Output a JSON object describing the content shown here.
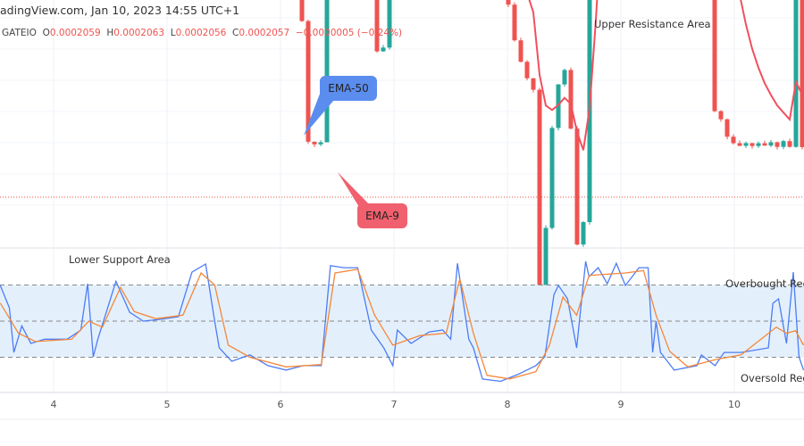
{
  "header": {
    "title": "adingView.com, Jan 10, 2023 14:55 UTC+1",
    "symbol": "GATEIO",
    "open_label": "O",
    "open": "0.0002059",
    "high_label": "H",
    "high": "0.0002063",
    "low_label": "L",
    "low": "0.0002056",
    "close_label": "C",
    "close": "0.0002057",
    "change": "−0.0000005 (−0.24%)"
  },
  "annotations": {
    "upper": "Upper Resistance Area",
    "lower": "Lower Support Area",
    "overbought": "Overbought Reg",
    "oversold": "Oversold Reg",
    "ema50": "EMA-50",
    "ema9": "EMA-9"
  },
  "colors": {
    "up": "#26a69a",
    "down": "#ef5350",
    "ema9": "#f0505f",
    "ema50": "#3d6ef5",
    "levels": "#5e35b1",
    "stoch_k": "#4d7cf5",
    "stoch_d": "#f5873a",
    "band": "#e3f0fc"
  },
  "chart_data": [
    {
      "type": "candlestick",
      "title": "",
      "x_ticks": [
        "4",
        "5",
        "6",
        "7",
        "8",
        "9",
        "10"
      ],
      "x_tick_values": [
        4,
        5,
        6,
        7,
        8,
        9,
        10
      ],
      "x_range": [
        3.53,
        10.61
      ],
      "last_close": 0.0002057,
      "levels": {
        "upper_resistance": 0.0002245,
        "lower_support": 0.0002016
      },
      "close_track": [
        [
          3.53,
          0.0002208
        ],
        [
          3.61,
          0.0002183
        ],
        [
          3.69,
          0.0002128
        ],
        [
          3.76,
          0.0002133
        ],
        [
          3.92,
          0.0002138
        ],
        [
          4.16,
          0.0002138
        ],
        [
          4.31,
          0.0002118
        ],
        [
          4.39,
          0.0002113
        ],
        [
          4.51,
          0.0002158
        ],
        [
          4.63,
          0.0002138
        ],
        [
          4.79,
          0.0002138
        ],
        [
          5.1,
          0.000214
        ],
        [
          5.34,
          0.000215
        ],
        [
          5.46,
          0.0002153
        ],
        [
          5.54,
          0.0002108
        ],
        [
          5.65,
          0.0002103
        ],
        [
          5.89,
          0.0002098
        ],
        [
          6.13,
          0.0002093
        ],
        [
          6.24,
          0.0002063
        ],
        [
          6.36,
          0.0002063
        ],
        [
          6.44,
          0.0002098
        ],
        [
          6.68,
          0.0002098
        ],
        [
          6.76,
          0.0002088
        ],
        [
          6.87,
          0.000207
        ],
        [
          6.99,
          0.0002083
        ],
        [
          7.07,
          0.0002098
        ],
        [
          7.31,
          0.0002098
        ],
        [
          7.46,
          0.0002093
        ],
        [
          7.54,
          0.0002143
        ],
        [
          7.62,
          0.0002088
        ],
        [
          7.78,
          0.0002088
        ],
        [
          7.94,
          0.0002083
        ],
        [
          8.09,
          0.0002073
        ],
        [
          8.25,
          0.0002068
        ],
        [
          8.29,
          0.0002038
        ],
        [
          8.37,
          0.0002063
        ],
        [
          8.49,
          0.0002073
        ],
        [
          8.57,
          0.0002063
        ],
        [
          8.65,
          0.0002043
        ],
        [
          8.72,
          0.0002083
        ],
        [
          8.8,
          0.0002128
        ],
        [
          8.96,
          0.0002158
        ],
        [
          9.04,
          0.0002198
        ],
        [
          9.16,
          0.0002188
        ],
        [
          9.2,
          0.0002203
        ],
        [
          9.28,
          0.0002168
        ],
        [
          9.35,
          0.0002118
        ],
        [
          9.51,
          0.0002108
        ],
        [
          9.67,
          0.0002108
        ],
        [
          9.75,
          0.0002103
        ],
        [
          9.79,
          0.0002068
        ],
        [
          9.98,
          0.0002063
        ],
        [
          10.22,
          0.0002063
        ],
        [
          10.5,
          0.0002063
        ],
        [
          10.54,
          0.0002088
        ],
        [
          10.61,
          0.0002058
        ]
      ],
      "series": [
        {
          "name": "EMA-9",
          "period": 9
        },
        {
          "name": "EMA-50",
          "period": 50
        }
      ]
    },
    {
      "type": "line",
      "title": "",
      "ylim": [
        0,
        100
      ],
      "levels": {
        "overbought": 80,
        "middle": 50,
        "oversold": 20
      },
      "series": [
        {
          "values": [
            [
              3.53,
              79.6
            ],
            [
              3.61,
              61
            ],
            [
              3.65,
              24
            ],
            [
              3.72,
              46
            ],
            [
              3.8,
              31.5
            ],
            [
              3.92,
              35
            ],
            [
              4.12,
              35
            ],
            [
              4.24,
              42.6
            ],
            [
              4.3,
              81
            ],
            [
              4.35,
              20.4
            ],
            [
              4.39,
              35
            ],
            [
              4.55,
              83
            ],
            [
              4.67,
              57.4
            ],
            [
              4.79,
              50
            ],
            [
              4.94,
              51.5
            ],
            [
              5.1,
              53.7
            ],
            [
              5.22,
              90.7
            ],
            [
              5.34,
              97.4
            ],
            [
              5.42,
              50
            ],
            [
              5.46,
              27.8
            ],
            [
              5.57,
              16.7
            ],
            [
              5.73,
              21.9
            ],
            [
              5.89,
              13
            ],
            [
              6.05,
              9.3
            ],
            [
              6.2,
              13
            ],
            [
              6.36,
              13
            ],
            [
              6.44,
              96
            ],
            [
              6.56,
              94.4
            ],
            [
              6.68,
              94.4
            ],
            [
              6.8,
              42.6
            ],
            [
              6.91,
              27.8
            ],
            [
              6.99,
              13
            ],
            [
              7.03,
              42.6
            ],
            [
              7.15,
              31.5
            ],
            [
              7.31,
              41
            ],
            [
              7.43,
              42.6
            ],
            [
              7.5,
              35
            ],
            [
              7.56,
              98
            ],
            [
              7.66,
              35
            ],
            [
              7.7,
              27.8
            ],
            [
              7.78,
              1.9
            ],
            [
              7.94,
              0
            ],
            [
              8.09,
              5.6
            ],
            [
              8.25,
              13
            ],
            [
              8.33,
              20.4
            ],
            [
              8.41,
              72
            ],
            [
              8.45,
              79.6
            ],
            [
              8.53,
              68.5
            ],
            [
              8.61,
              27.8
            ],
            [
              8.69,
              99.6
            ],
            [
              8.72,
              87
            ],
            [
              8.8,
              94.4
            ],
            [
              8.88,
              81
            ],
            [
              8.96,
              98
            ],
            [
              9.04,
              79.6
            ],
            [
              9.16,
              94.4
            ],
            [
              9.24,
              94.4
            ],
            [
              9.28,
              24
            ],
            [
              9.31,
              50
            ],
            [
              9.35,
              24
            ],
            [
              9.47,
              9.3
            ],
            [
              9.67,
              13
            ],
            [
              9.71,
              21.9
            ],
            [
              9.83,
              13
            ],
            [
              9.91,
              24
            ],
            [
              10.06,
              24
            ],
            [
              10.3,
              27.8
            ],
            [
              10.34,
              64.8
            ],
            [
              10.39,
              68.5
            ],
            [
              10.46,
              31.5
            ],
            [
              10.52,
              90.7
            ],
            [
              10.57,
              20.4
            ],
            [
              10.61,
              9.3
            ]
          ]
        },
        {
          "values": [
            [
              3.53,
              65
            ],
            [
              3.69,
              40
            ],
            [
              3.84,
              33
            ],
            [
              4.16,
              35
            ],
            [
              4.31,
              50
            ],
            [
              4.43,
              45
            ],
            [
              4.59,
              78
            ],
            [
              4.71,
              58
            ],
            [
              4.9,
              52
            ],
            [
              5.14,
              55
            ],
            [
              5.3,
              90
            ],
            [
              5.42,
              80
            ],
            [
              5.54,
              30
            ],
            [
              5.73,
              20
            ],
            [
              6.05,
              12
            ],
            [
              6.36,
              14
            ],
            [
              6.48,
              90
            ],
            [
              6.68,
              93
            ],
            [
              6.83,
              55
            ],
            [
              6.99,
              30
            ],
            [
              7.23,
              38
            ],
            [
              7.46,
              40
            ],
            [
              7.58,
              85
            ],
            [
              7.7,
              40
            ],
            [
              7.82,
              5
            ],
            [
              8.02,
              2
            ],
            [
              8.25,
              8
            ],
            [
              8.37,
              30
            ],
            [
              8.49,
              70
            ],
            [
              8.61,
              55
            ],
            [
              8.72,
              88
            ],
            [
              9.04,
              90
            ],
            [
              9.2,
              92
            ],
            [
              9.31,
              55
            ],
            [
              9.43,
              25
            ],
            [
              9.59,
              12
            ],
            [
              9.83,
              18
            ],
            [
              10.06,
              22
            ],
            [
              10.37,
              45
            ],
            [
              10.46,
              40
            ],
            [
              10.54,
              42
            ],
            [
              10.61,
              30
            ]
          ]
        }
      ]
    }
  ]
}
